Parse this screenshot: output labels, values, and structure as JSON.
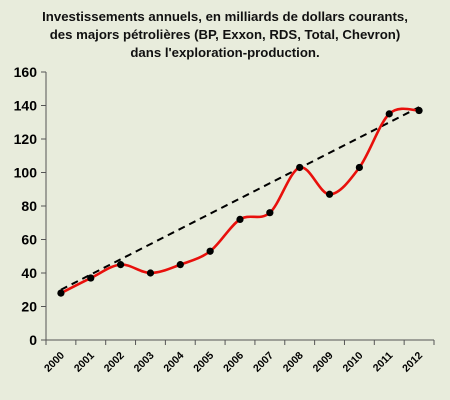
{
  "chart_data": {
    "type": "line",
    "title_lines": [
      "Investissements  annuels, en milliards de dollars courants,",
      "des majors pétrolières (BP, Exxon, RDS, Total, Chevron)",
      "dans l'exploration-production."
    ],
    "x": [
      "2000",
      "2001",
      "2002",
      "2003",
      "2004",
      "2005",
      "2006",
      "2007",
      "2008",
      "2009",
      "2010",
      "2011",
      "2012"
    ],
    "series": [
      {
        "values": [
          28,
          37,
          45,
          40,
          45,
          53,
          72,
          76,
          103,
          87,
          103,
          135,
          137
        ],
        "color": "#e8100c",
        "style": "smooth"
      }
    ],
    "trend": {
      "start": 30,
      "end": 139,
      "color": "#000000",
      "style": "dashed"
    },
    "yticks": [
      0,
      20,
      40,
      60,
      80,
      100,
      120,
      140,
      160
    ],
    "ylim": [
      0,
      160
    ],
    "xlabel": "",
    "ylabel": "",
    "grid": false,
    "legend": "none"
  }
}
